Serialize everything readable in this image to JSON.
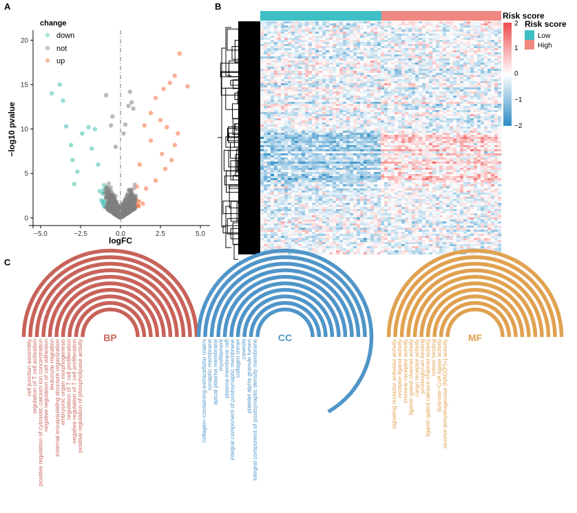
{
  "panels": {
    "a": "A",
    "b": "B",
    "c": "C"
  },
  "chart_data": [
    {
      "type": "scatter",
      "xlabel": "logFC",
      "ylabel": "−log10 pvalue",
      "xlim": [
        -5.6,
        5.6
      ],
      "ylim": [
        -0.2,
        20.8
      ],
      "xticks": [
        -5.0,
        -2.5,
        0.0,
        2.5,
        5.0
      ],
      "xtick_labels": [
        "−5.0",
        "−2.5",
        "0.0",
        "2.5",
        "5.0"
      ],
      "yticks": [
        0,
        5,
        10,
        15,
        20
      ],
      "ytick_labels": [
        "0",
        "5",
        "10",
        "15",
        "20"
      ],
      "vline": 0,
      "legend": {
        "title": "change",
        "position": "top-left",
        "entries": [
          {
            "label": "down",
            "color": "#3ebfae"
          },
          {
            "label": "not",
            "color": "#7f7f7f"
          },
          {
            "label": "up",
            "color": "#f46d3c"
          }
        ]
      },
      "series": [
        {
          "name": "down",
          "color": "#3ebfae",
          "points": [
            [
              -4.3,
              14.0
            ],
            [
              -3.8,
              15.0
            ],
            [
              -3.6,
              13.2
            ],
            [
              -3.4,
              10.3
            ],
            [
              -3.1,
              8.2
            ],
            [
              -3.0,
              6.5
            ],
            [
              -2.7,
              5.2
            ],
            [
              -2.9,
              3.8
            ],
            [
              -2.4,
              9.5
            ],
            [
              -2.0,
              10.2
            ],
            [
              -1.8,
              7.8
            ],
            [
              -1.6,
              10.0
            ],
            [
              -1.4,
              6.0
            ],
            [
              -1.3,
              3.0
            ],
            [
              -1.2,
              2.0
            ]
          ]
        },
        {
          "name": "not",
          "color": "#7f7f7f",
          "points": [
            [
              -0.9,
              13.8
            ],
            [
              -0.6,
              10.4
            ],
            [
              -0.3,
              8.0
            ],
            [
              0.3,
              10.5
            ],
            [
              0.6,
              14.2
            ],
            [
              0.7,
              13.0
            ],
            [
              0.8,
              12.3
            ],
            [
              0.5,
              12.6
            ],
            [
              -0.5,
              11.4
            ],
            [
              0.2,
              9.5
            ]
          ]
        },
        {
          "name": "up",
          "color": "#f46d3c",
          "points": [
            [
              3.7,
              18.5
            ],
            [
              4.2,
              14.8
            ],
            [
              3.4,
              16.0
            ],
            [
              3.1,
              15.2
            ],
            [
              2.7,
              14.5
            ],
            [
              2.2,
              13.5
            ],
            [
              1.9,
              11.8
            ],
            [
              2.5,
              11.0
            ],
            [
              2.9,
              10.2
            ],
            [
              3.6,
              9.5
            ],
            [
              3.4,
              8.2
            ],
            [
              2.6,
              7.2
            ],
            [
              3.2,
              6.5
            ],
            [
              2.8,
              5.5
            ],
            [
              2.2,
              4.2
            ],
            [
              1.9,
              8.7
            ],
            [
              1.5,
              10.4
            ],
            [
              1.2,
              6.0
            ],
            [
              1.6,
              3.3
            ],
            [
              1.4,
              1.6
            ]
          ]
        }
      ]
    },
    {
      "type": "heatmap",
      "annotation_title": "Risk score",
      "annotation_groups": [
        {
          "label": "Low",
          "color": "#3ebfc5"
        },
        {
          "label": "High",
          "color": "#ef8880"
        }
      ],
      "colorbar_range": [
        -2,
        2
      ],
      "colorbar_ticks": [
        "2",
        "1",
        "0",
        "−1",
        "−2"
      ],
      "colors": {
        "low": "#2b8bc6",
        "mid": "#ffffff",
        "high": "#ee4d4d"
      }
    },
    {
      "type": "chord-arc",
      "groups": [
        {
          "name": "BP",
          "color": "#c8635a",
          "terms": [
            "cell junction assembly",
            "regulation of T cell activation",
            "positive regulation of cytosolic calcium ion concentration",
            "negative regulation of cell adhesion",
            "leukocyte migration",
            "external encapsulating structure organization",
            "embryonic organ morphogenesis",
            "regulation of T cell proliferation",
            "negative regulation of T cell proliferation",
            "positive regulation of phospholipase activity"
          ]
        },
        {
          "name": "CC",
          "color": "#4f95c8",
          "terms": [
            "collagen−containing extracellular matrix",
            "synaptic membrane",
            "apical plasma membrane",
            "myofilament",
            "plasma membrane raft",
            "integral component of postsynaptic membrane",
            "collagen trimer",
            "caveola",
            "platelet alpha granule lumen",
            "integral component of postsynaptic density membrane"
          ]
        },
        {
          "name": "MF",
          "color": "#e0a150",
          "terms": [
            "signaling receptor activator activity",
            "receptor ligand activity",
            "immune receptor activity",
            "ligand−gated channel activity",
            "cargo receptor activity",
            "proteoglycan binding",
            "ligand−gated calcium channel activity",
            "retinol binding",
            "butyrate−CoA ligase activity",
            "alcohol dehydrogenase [NAD(P)+] activity"
          ]
        }
      ]
    }
  ]
}
